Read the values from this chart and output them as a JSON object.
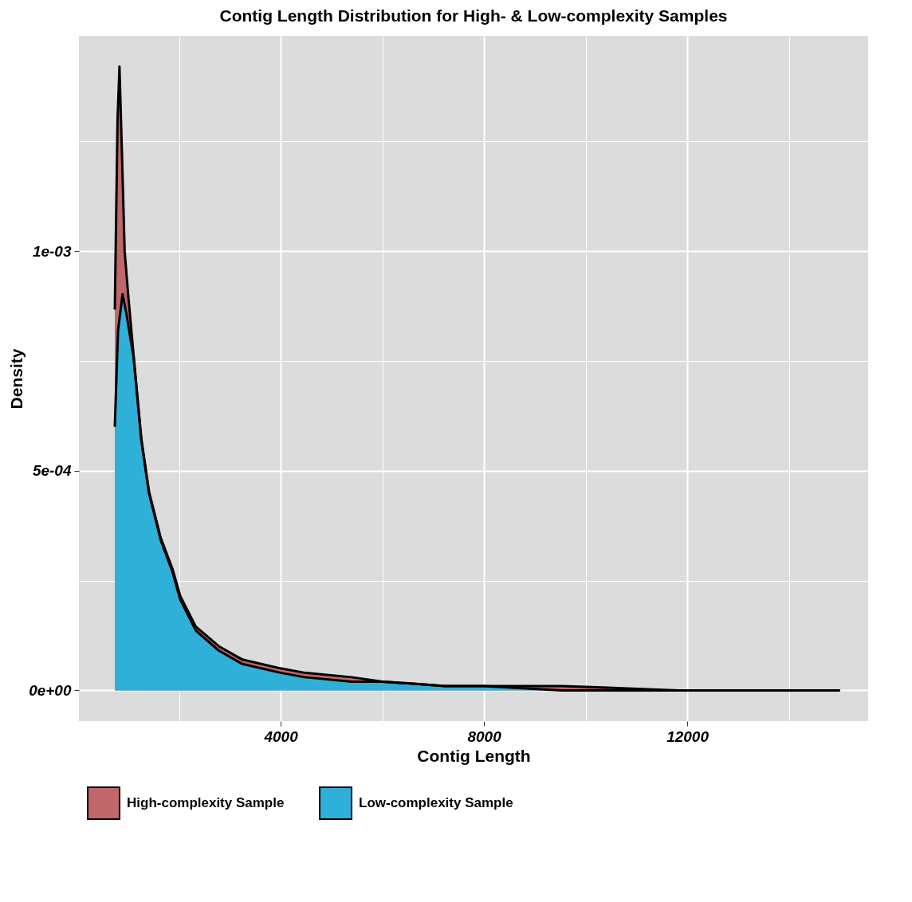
{
  "chart_data": {
    "type": "area",
    "title": "Contig Length Distribution for High- & Low-complexity Samples",
    "xlabel": "Contig Length",
    "ylabel": "Density",
    "xlim": [
      30,
      15560
    ],
    "ylim": [
      -7e-05,
      0.00149
    ],
    "xticks": [
      {
        "value": 2000,
        "label": null
      },
      4000,
      {
        "value": 6000,
        "label": null
      },
      8000,
      {
        "value": 10000,
        "label": null
      },
      12000,
      {
        "value": 14000,
        "label": null
      }
    ],
    "yticks": [
      {
        "value": 0,
        "label": "0e+00"
      },
      {
        "value": 0.00025,
        "label": null
      },
      {
        "value": 0.0005,
        "label": "5e-04"
      },
      {
        "value": 0.00075,
        "label": null
      },
      {
        "value": 0.001,
        "label": "1e-03"
      },
      {
        "value": 0.00125,
        "label": null
      }
    ],
    "grid": true,
    "legend": "bottom",
    "series": [
      {
        "name": "High-complexity Sample",
        "color": "#c0676a",
        "x": [
          736,
          790,
          828,
          870,
          930,
          1000,
          1103,
          1257,
          1410,
          1640,
          1870,
          2023,
          2330,
          2789,
          3249,
          4000,
          4475,
          5395,
          6008,
          7234,
          8000,
          9533,
          11831,
          15004
        ],
        "values": [
          0.000867,
          0.0013,
          0.00142,
          0.00125,
          0.001,
          0.0009,
          0.000767,
          0.000574,
          0.000452,
          0.000347,
          0.000277,
          0.000215,
          0.000145,
          0.0001,
          7e-05,
          5e-05,
          4e-05,
          3e-05,
          2e-05,
          1e-05,
          1e-05,
          1e-05,
          0,
          0
        ]
      },
      {
        "name": "Low-complexity Sample",
        "color": "#2fb0d8",
        "x": [
          736,
          800,
          889,
          960,
          1103,
          1257,
          1410,
          1640,
          1870,
          2023,
          2330,
          2789,
          3249,
          4000,
          4475,
          5395,
          6008,
          7234,
          8000,
          9533,
          11831,
          15004
        ],
        "values": [
          0.0006,
          0.00082,
          0.000902,
          0.00086,
          0.00076,
          0.00057,
          0.000448,
          0.000342,
          0.00027,
          0.000207,
          0.000136,
          9e-05,
          6e-05,
          4e-05,
          3e-05,
          2e-05,
          2e-05,
          1e-05,
          1e-05,
          0,
          0,
          0
        ]
      }
    ]
  }
}
